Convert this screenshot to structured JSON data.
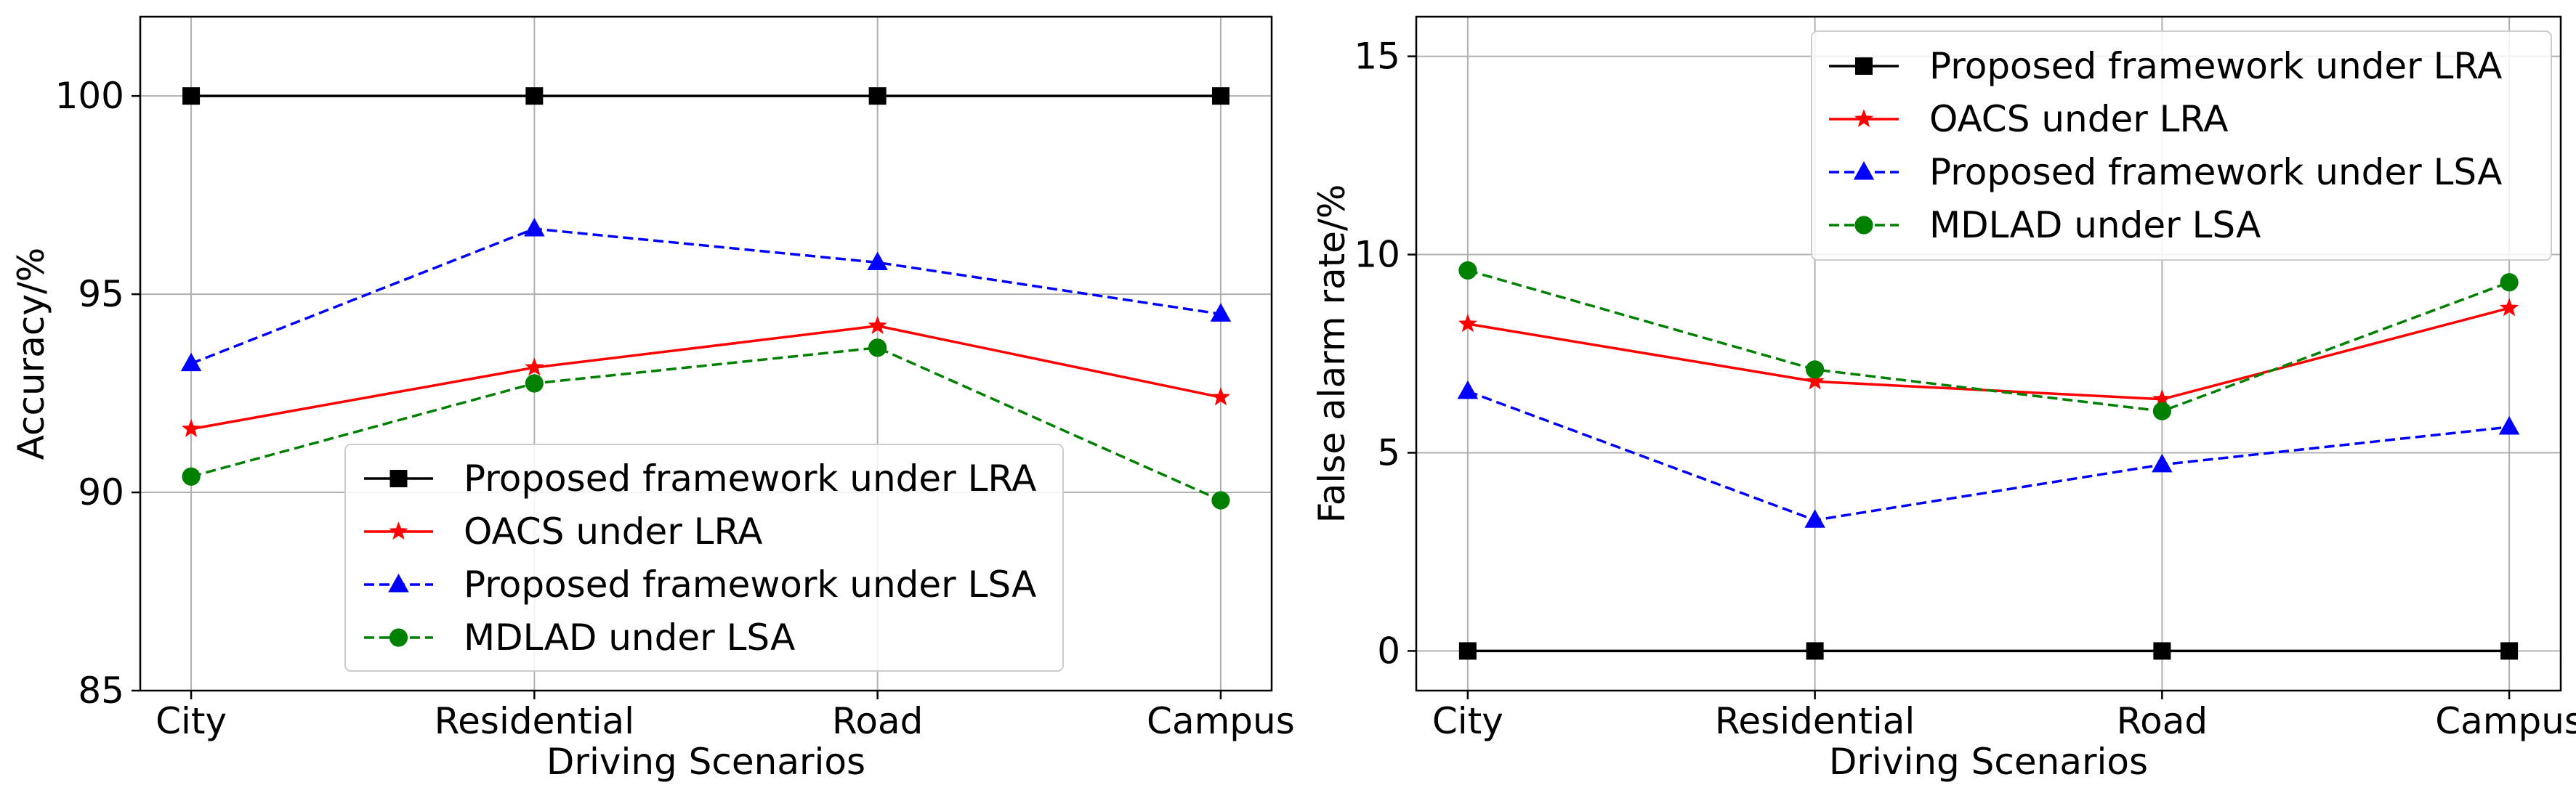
{
  "chart_data": [
    {
      "type": "line",
      "xlabel": "Driving Scenarios",
      "ylabel": "Accuracy/%",
      "categories": [
        "City",
        "Residential",
        "Road",
        "Campus"
      ],
      "ylim": [
        85,
        102
      ],
      "yticks": [
        85,
        90,
        95,
        100
      ],
      "grid": true,
      "legend_loc": "lower-center",
      "series": [
        {
          "name": "Proposed framework under LRA",
          "color": "#000000",
          "dash": "solid",
          "marker": "square",
          "values": [
            100,
            100,
            100,
            100
          ]
        },
        {
          "name": "OACS under LRA",
          "color": "#ff0000",
          "dash": "solid",
          "marker": "star",
          "values": [
            91.6,
            93.15,
            94.2,
            92.4
          ]
        },
        {
          "name": "Proposed framework under LSA",
          "color": "#0000ff",
          "dash": "dashed",
          "marker": "triangle",
          "values": [
            93.25,
            96.65,
            95.8,
            94.5
          ]
        },
        {
          "name": "MDLAD under LSA",
          "color": "#008000",
          "dash": "dashed",
          "marker": "circle",
          "values": [
            90.4,
            92.75,
            93.65,
            89.8
          ]
        }
      ]
    },
    {
      "type": "line",
      "xlabel": "Driving Scenarios",
      "ylabel": "False alarm rate/%",
      "categories": [
        "City",
        "Residential",
        "Road",
        "Campus"
      ],
      "ylim": [
        -1,
        16
      ],
      "yticks": [
        0,
        5,
        10,
        15
      ],
      "grid": true,
      "legend_loc": "upper-right",
      "series": [
        {
          "name": "Proposed framework under LRA",
          "color": "#000000",
          "dash": "solid",
          "marker": "square",
          "values": [
            0,
            0,
            0,
            0
          ]
        },
        {
          "name": "OACS under LRA",
          "color": "#ff0000",
          "dash": "solid",
          "marker": "star",
          "values": [
            8.25,
            6.8,
            6.35,
            8.65
          ]
        },
        {
          "name": "Proposed framework under LSA",
          "color": "#0000ff",
          "dash": "dashed",
          "marker": "triangle",
          "values": [
            6.55,
            3.3,
            4.7,
            5.65
          ]
        },
        {
          "name": "MDLAD under LSA",
          "color": "#008000",
          "dash": "dashed",
          "marker": "circle",
          "values": [
            9.6,
            7.1,
            6.05,
            9.3
          ]
        }
      ]
    }
  ]
}
